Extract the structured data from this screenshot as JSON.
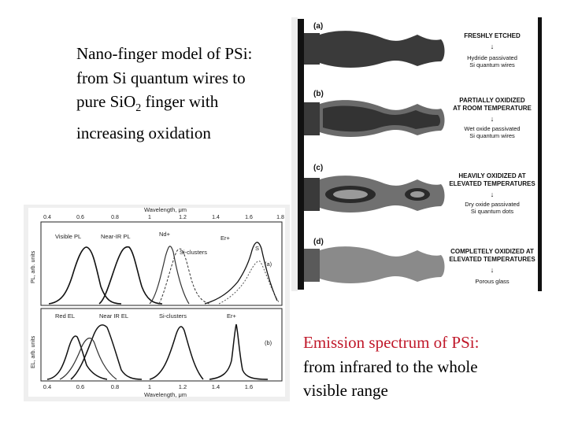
{
  "top_caption": {
    "line1": "Nano-finger model of PSi:",
    "line2": "from Si quantum wires to",
    "line3_a": "pure SiO",
    "line3_sub": "2",
    "line3_b": " finger with",
    "line4": "increasing oxidation"
  },
  "bottom_caption": {
    "line1": "Emission spectrum of PSi:",
    "line2": "from infrared to the whole",
    "line3": "visible range",
    "highlight_color": "#c0182a"
  },
  "nanofinger_figure": {
    "panels": [
      {
        "letter": "(a)",
        "title_1": "FRESHLY ETCHED",
        "title_2": "",
        "desc_1": "Hydride passivated",
        "desc_2": "Si quantum wires"
      },
      {
        "letter": "(b)",
        "title_1": "PARTIALLY OXIDIZED",
        "title_2": "AT ROOM TEMPERATURE",
        "desc_1": "Wet oxide passivated",
        "desc_2": "Si quantum wires"
      },
      {
        "letter": "(c)",
        "title_1": "HEAVILY OXIDIZED AT",
        "title_2": "ELEVATED TEMPERATURES",
        "desc_1": "Dry oxide passivated",
        "desc_2": "Si quantum dots"
      },
      {
        "letter": "(d)",
        "title_1": "COMPLETELY OXIDIZED AT",
        "title_2": "ELEVATED TEMPERATURES",
        "desc_1": "Porous glass",
        "desc_2": ""
      }
    ]
  },
  "spectrum_figure": {
    "top_axis_title": "Wavelength, μm",
    "bottom_axis_title": "Wavelength, μm",
    "top_ticks": [
      "0.4",
      "0.6",
      "0.8",
      "1",
      "1.2",
      "1.4",
      "1.6",
      "1.8"
    ],
    "bottom_ticks": [
      "0.4",
      "0.6",
      "0.8",
      "1",
      "1.2",
      "1.4",
      "1.6"
    ],
    "pl_panel": {
      "ylabel": "PL, arb. units",
      "tag": "(a)",
      "labels": {
        "visible": "Visible PL",
        "nearir": "Near-IR PL",
        "nd": "Nd+",
        "er": "Er+",
        "sicl": "Si-clusters",
        "s": "S"
      }
    },
    "el_panel": {
      "ylabel": "EL, arb. units",
      "tag": "(b)",
      "labels": {
        "red": "Red EL",
        "nearir": "Near IR EL",
        "sicl": "Si-clusters",
        "er": "Er+"
      }
    }
  }
}
